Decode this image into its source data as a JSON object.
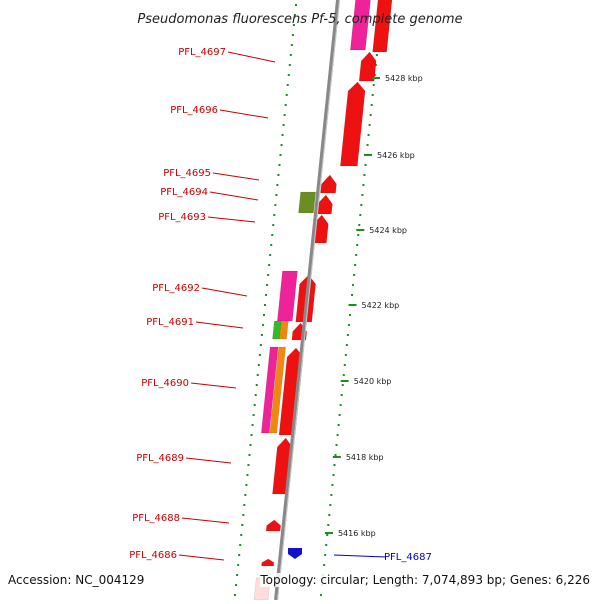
{
  "title": "Pseudomonas fluorescens Pf-5, complete genome",
  "accession": "Accession: NC_004129",
  "stats": "Topology: circular; Length: 7,074,893 bp; Genes: 6,226",
  "colors": {
    "gene_red": "#ee1111",
    "gene_pink": "#ee2299",
    "gene_orange": "#ee8811",
    "gene_green": "#33bb22",
    "gene_olive": "#6b8e23",
    "gene_blue": "#1111cc",
    "backbone": "#888888",
    "tick_green": "#228b22",
    "label_red": "#cc0000",
    "label_blue": "#0000cc"
  },
  "scale_ticks": [
    {
      "label": "5428 kbp"
    },
    {
      "label": "5426 kbp"
    },
    {
      "label": "5424 kbp"
    },
    {
      "label": "5422 kbp"
    },
    {
      "label": "5420 kbp"
    },
    {
      "label": "5418 kbp"
    },
    {
      "label": "5416 kbp"
    }
  ],
  "gene_labels": [
    {
      "text": "PFL_4697",
      "strand": "forward"
    },
    {
      "text": "PFL_4696",
      "strand": "forward"
    },
    {
      "text": "PFL_4695",
      "strand": "forward"
    },
    {
      "text": "PFL_4694",
      "strand": "forward"
    },
    {
      "text": "PFL_4693",
      "strand": "forward"
    },
    {
      "text": "PFL_4692",
      "strand": "forward"
    },
    {
      "text": "PFL_4691",
      "strand": "forward"
    },
    {
      "text": "PFL_4690",
      "strand": "forward"
    },
    {
      "text": "PFL_4689",
      "strand": "forward"
    },
    {
      "text": "PFL_4688",
      "strand": "forward"
    },
    {
      "text": "PFL_4686",
      "strand": "forward"
    },
    {
      "text": "PFL_4687",
      "strand": "reverse"
    }
  ]
}
